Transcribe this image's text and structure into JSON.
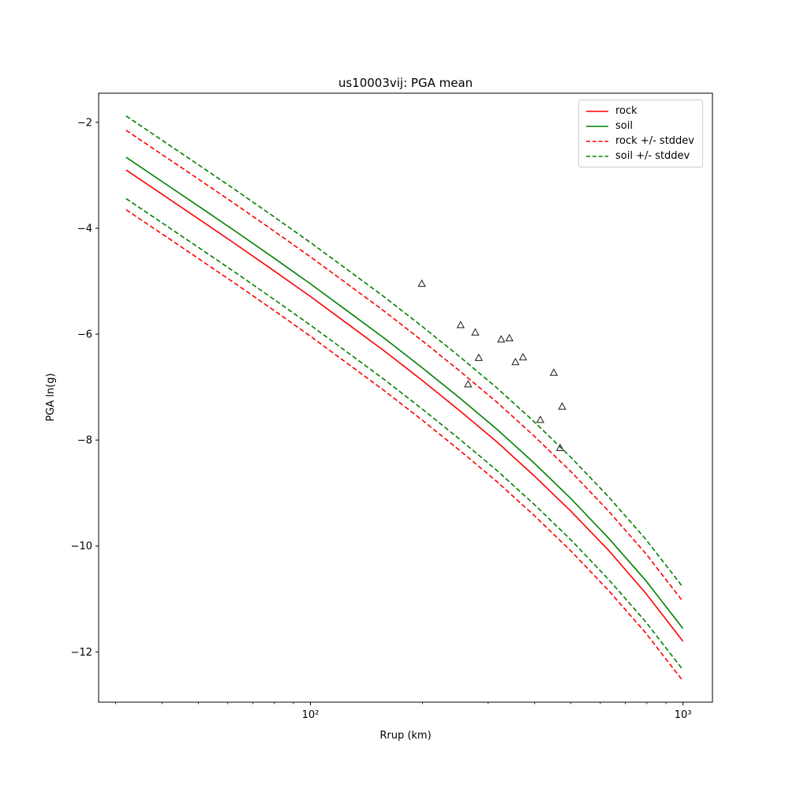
{
  "figure": {
    "background": "#ffffff",
    "frame_color": "#000000"
  },
  "chart_data": {
    "type": "line",
    "title": "us10003vij: PGA mean",
    "xlabel": "Rrup (km)",
    "ylabel": "PGA ln(g)",
    "x_scale": "log",
    "xlim": [
      27,
      1200
    ],
    "ylim": [
      -12.95,
      -1.45
    ],
    "x_major_ticks": [
      100,
      1000
    ],
    "x_major_tick_labels": [
      "10²",
      "10³"
    ],
    "y_ticks": [
      -2,
      -4,
      -6,
      -8,
      -10,
      -12
    ],
    "grid": false,
    "legend_position": "upper right",
    "x": [
      32,
      40,
      50,
      63,
      79,
      100,
      126,
      158,
      200,
      251,
      316,
      398,
      501,
      631,
      794,
      1000
    ],
    "series": [
      {
        "name": "rock",
        "color": "#ff0000",
        "style": "solid",
        "values": [
          -2.9,
          -3.36,
          -3.82,
          -4.3,
          -4.78,
          -5.29,
          -5.81,
          -6.32,
          -6.88,
          -7.44,
          -8.03,
          -8.67,
          -9.35,
          -10.08,
          -10.89,
          -11.8
        ]
      },
      {
        "name": "soil",
        "color": "#008000",
        "style": "solid",
        "values": [
          -2.66,
          -3.12,
          -3.58,
          -4.06,
          -4.54,
          -5.05,
          -5.57,
          -6.08,
          -6.64,
          -7.2,
          -7.79,
          -8.43,
          -9.11,
          -9.85,
          -10.65,
          -11.56
        ]
      },
      {
        "name": "rock +/- stddev",
        "color": "#ff0000",
        "style": "dashed",
        "values_upper": [
          -2.15,
          -2.61,
          -3.07,
          -3.55,
          -4.03,
          -4.54,
          -5.06,
          -5.57,
          -6.13,
          -6.69,
          -7.28,
          -7.92,
          -8.6,
          -9.34,
          -10.14,
          -11.05
        ],
        "values_lower": [
          -3.65,
          -4.11,
          -4.57,
          -5.05,
          -5.53,
          -6.04,
          -6.56,
          -7.07,
          -7.63,
          -8.19,
          -8.78,
          -9.42,
          -10.1,
          -10.84,
          -11.64,
          -12.55
        ]
      },
      {
        "name": "soil +/- stddev",
        "color": "#008000",
        "style": "dashed",
        "values_upper": [
          -1.88,
          -2.34,
          -2.8,
          -3.28,
          -3.76,
          -4.27,
          -4.79,
          -5.3,
          -5.86,
          -6.42,
          -7.01,
          -7.65,
          -8.33,
          -9.07,
          -9.87,
          -10.78
        ],
        "values_lower": [
          -3.44,
          -3.9,
          -4.36,
          -4.84,
          -5.32,
          -5.83,
          -6.35,
          -6.86,
          -7.42,
          -7.98,
          -8.57,
          -9.21,
          -9.89,
          -10.63,
          -11.43,
          -12.34
        ]
      }
    ],
    "scatter": {
      "marker": "triangle-up-open",
      "color": "#1a1a1a",
      "points": [
        [
          199,
          -5.05
        ],
        [
          253,
          -5.83
        ],
        [
          277,
          -5.97
        ],
        [
          283,
          -6.45
        ],
        [
          265,
          -6.95
        ],
        [
          325,
          -6.1
        ],
        [
          342,
          -6.08
        ],
        [
          355,
          -6.53
        ],
        [
          372,
          -6.44
        ],
        [
          414,
          -7.62
        ],
        [
          450,
          -6.73
        ],
        [
          474,
          -7.37
        ],
        [
          468,
          -8.15
        ]
      ]
    }
  }
}
